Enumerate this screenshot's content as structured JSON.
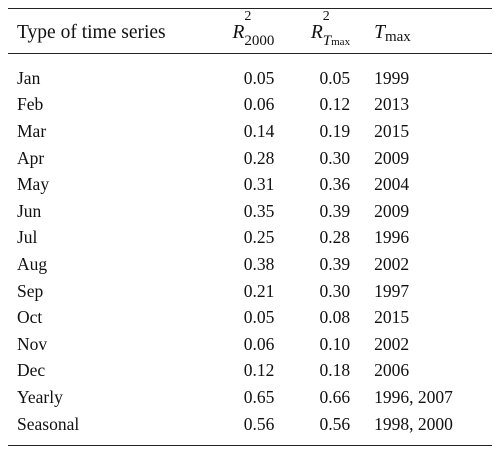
{
  "header": {
    "type": "Type of time series",
    "r2000_base": "R",
    "r2000_sup": "2",
    "r2000_sub": "2000",
    "rtmax_base": "R",
    "rtmax_sup": "2",
    "rtmax_sub_T": "T",
    "rtmax_sub_max": "max",
    "tmax_base": "T",
    "tmax_sub": "max"
  },
  "rows": [
    {
      "type": "Jan",
      "r2000": "0.05",
      "rtmax": "0.05",
      "tmax": "1999"
    },
    {
      "type": "Feb",
      "r2000": "0.06",
      "rtmax": "0.12",
      "tmax": "2013"
    },
    {
      "type": "Mar",
      "r2000": "0.14",
      "rtmax": "0.19",
      "tmax": "2015"
    },
    {
      "type": "Apr",
      "r2000": "0.28",
      "rtmax": "0.30",
      "tmax": "2009"
    },
    {
      "type": "May",
      "r2000": "0.31",
      "rtmax": "0.36",
      "tmax": "2004"
    },
    {
      "type": "Jun",
      "r2000": "0.35",
      "rtmax": "0.39",
      "tmax": "2009"
    },
    {
      "type": "Jul",
      "r2000": "0.25",
      "rtmax": "0.28",
      "tmax": "1996"
    },
    {
      "type": "Aug",
      "r2000": "0.38",
      "rtmax": "0.39",
      "tmax": "2002"
    },
    {
      "type": "Sep",
      "r2000": "0.21",
      "rtmax": "0.30",
      "tmax": "1997"
    },
    {
      "type": "Oct",
      "r2000": "0.05",
      "rtmax": "0.08",
      "tmax": "2015"
    },
    {
      "type": "Nov",
      "r2000": "0.06",
      "rtmax": "0.10",
      "tmax": "2002"
    },
    {
      "type": "Dec",
      "r2000": "0.12",
      "rtmax": "0.18",
      "tmax": "2006"
    },
    {
      "type": "Yearly",
      "r2000": "0.65",
      "rtmax": "0.66",
      "tmax": "1996, 2007"
    },
    {
      "type": "Seasonal",
      "r2000": "0.56",
      "rtmax": "0.56",
      "tmax": "1998, 2000"
    }
  ]
}
